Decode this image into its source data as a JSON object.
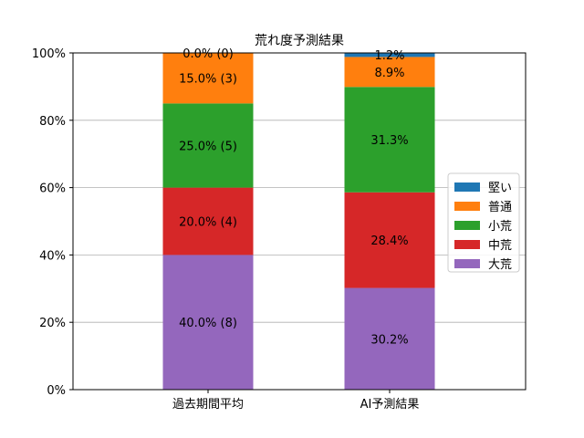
{
  "chart_data": {
    "type": "bar",
    "stacked": true,
    "title": "荒れ度予測結果",
    "categories": [
      "過去期間平均",
      "AI予測結果"
    ],
    "ylim": [
      0,
      100
    ],
    "yticks": [
      "0%",
      "20%",
      "40%",
      "60%",
      "80%",
      "100%"
    ],
    "grid": "horizontal",
    "legend_position": "right",
    "series": [
      {
        "name": "大荒",
        "color": "#9467bd",
        "values": [
          40.0,
          30.2
        ],
        "labels": [
          "40.0% (8)",
          "30.2%"
        ]
      },
      {
        "name": "中荒",
        "color": "#d62728",
        "values": [
          20.0,
          28.4
        ],
        "labels": [
          "20.0% (4)",
          "28.4%"
        ]
      },
      {
        "name": "小荒",
        "color": "#2ca02c",
        "values": [
          25.0,
          31.3
        ],
        "labels": [
          "25.0% (5)",
          "31.3%"
        ]
      },
      {
        "name": "普通",
        "color": "#ff7f0e",
        "values": [
          15.0,
          8.9
        ],
        "labels": [
          "15.0% (3)",
          "8.9%"
        ]
      },
      {
        "name": "堅い",
        "color": "#1f77b4",
        "values": [
          0.0,
          1.2
        ],
        "labels": [
          "0.0% (0)",
          "1.2%"
        ]
      }
    ],
    "legend_order": [
      "堅い",
      "普通",
      "小荒",
      "中荒",
      "大荒"
    ]
  }
}
